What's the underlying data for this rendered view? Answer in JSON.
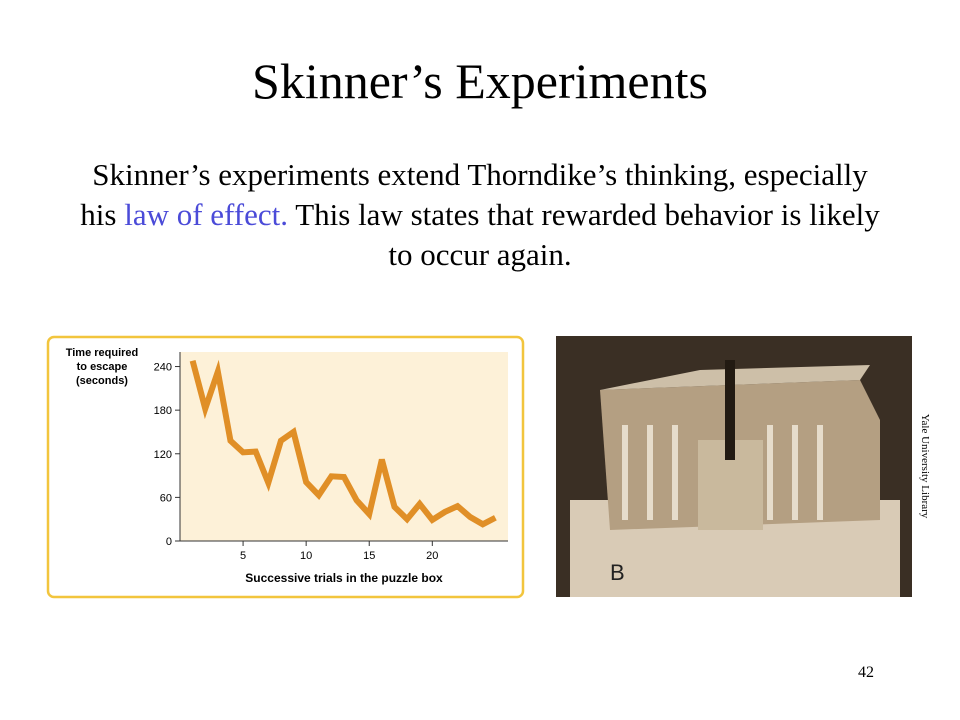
{
  "slide": {
    "title": "Skinner’s Experiments",
    "body": {
      "before": "Skinner’s experiments extend Thorndike’s thinking, especially his ",
      "highlight": "law of effect.",
      "after": " This law states that rewarded behavior is likely to occur again."
    },
    "photo_credit": "Yale University Library",
    "page_number": "42"
  },
  "chart_data": {
    "type": "line",
    "y_label": "Time required to escape (seconds)",
    "x_label": "Successive trials in the puzzle box",
    "x": [
      1,
      2,
      3,
      4,
      5,
      6,
      7,
      8,
      9,
      10,
      11,
      12,
      13,
      14,
      15,
      16,
      17,
      18,
      19,
      20,
      21,
      22,
      23,
      24,
      25
    ],
    "values": [
      248,
      182,
      233,
      138,
      122,
      123,
      80,
      138,
      150,
      81,
      63,
      89,
      88,
      56,
      37,
      112,
      47,
      30,
      51,
      29,
      40,
      48,
      33,
      23,
      32
    ],
    "color": "#e08f27",
    "xlim": [
      0,
      26
    ],
    "ylim": [
      0,
      260
    ],
    "xticks": [
      5,
      10,
      15,
      20
    ],
    "yticks": [
      0,
      60,
      120,
      180,
      240
    ]
  }
}
